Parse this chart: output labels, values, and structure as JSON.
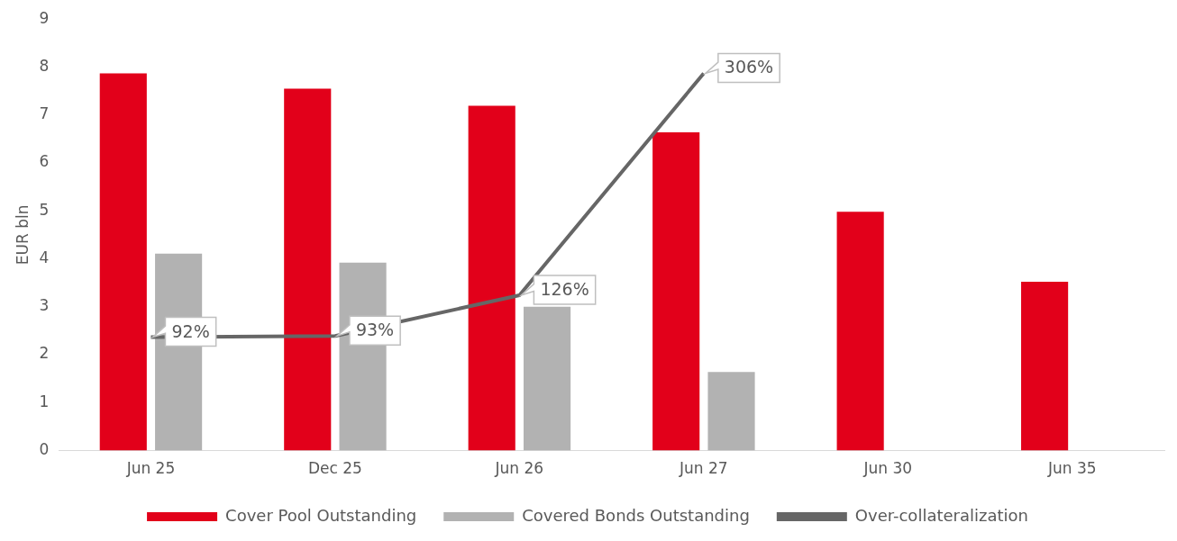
{
  "chart_data": {
    "type": "bar",
    "categories": [
      "Jun 25",
      "Dec 25",
      "Jun 26",
      "Jun 27",
      "Jun 30",
      "Jun 35"
    ],
    "ylabel": "EUR bln",
    "ylim": [
      0,
      9
    ],
    "yticks": [
      0,
      1,
      2,
      3,
      4,
      5,
      6,
      7,
      8,
      9
    ],
    "grid": false,
    "legend": "bottom",
    "series": [
      {
        "name": "Cover Pool Outstanding",
        "color": "#e2001a",
        "values": [
          7.87,
          7.55,
          7.19,
          6.64,
          4.98,
          3.52
        ]
      },
      {
        "name": "Covered Bonds Outstanding",
        "color": "#b2b2b2",
        "values": [
          4.11,
          3.92,
          3.0,
          1.64,
          null,
          null
        ]
      },
      {
        "name": "Over-collateralization",
        "type": "line",
        "axis": "y2",
        "color": "#666666",
        "values": [
          92,
          93,
          126,
          306,
          null,
          null
        ],
        "value_labels": [
          "92%",
          "93%",
          "126%",
          "306%",
          null,
          null
        ]
      }
    ]
  }
}
